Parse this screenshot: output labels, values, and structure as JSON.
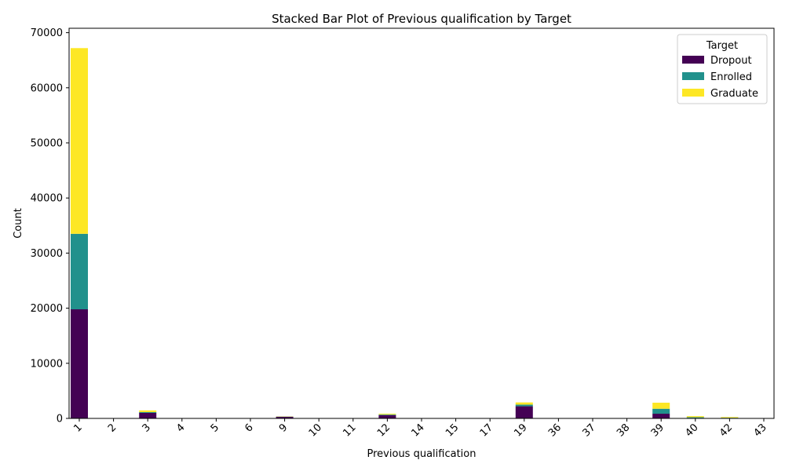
{
  "chart_data": {
    "type": "bar",
    "stacked": true,
    "title": "Stacked Bar Plot of Previous qualification by Target",
    "xlabel": "Previous qualification",
    "ylabel": "Count",
    "ylim": [
      0,
      70800
    ],
    "yticks": [
      0,
      10000,
      20000,
      30000,
      40000,
      50000,
      60000,
      70000
    ],
    "categories": [
      "1",
      "2",
      "3",
      "4",
      "5",
      "6",
      "9",
      "10",
      "11",
      "12",
      "14",
      "15",
      "17",
      "19",
      "36",
      "37",
      "38",
      "39",
      "40",
      "42",
      "43"
    ],
    "series": [
      {
        "name": "Dropout",
        "color": "#440154",
        "values": [
          19800,
          20,
          1000,
          10,
          15,
          10,
          300,
          30,
          5,
          600,
          5,
          5,
          5,
          2200,
          5,
          5,
          5,
          850,
          90,
          80,
          5
        ]
      },
      {
        "name": "Enrolled",
        "color": "#21918c",
        "values": [
          13700,
          5,
          150,
          5,
          5,
          5,
          30,
          10,
          5,
          100,
          5,
          5,
          5,
          300,
          5,
          5,
          5,
          900,
          120,
          40,
          5
        ]
      },
      {
        "name": "Graduate",
        "color": "#fde725",
        "values": [
          33700,
          10,
          300,
          10,
          10,
          10,
          40,
          10,
          5,
          150,
          10,
          5,
          5,
          400,
          5,
          5,
          5,
          1100,
          200,
          130,
          10
        ]
      }
    ],
    "legend": {
      "title": "Target",
      "position": "top-right"
    },
    "grid": false
  }
}
